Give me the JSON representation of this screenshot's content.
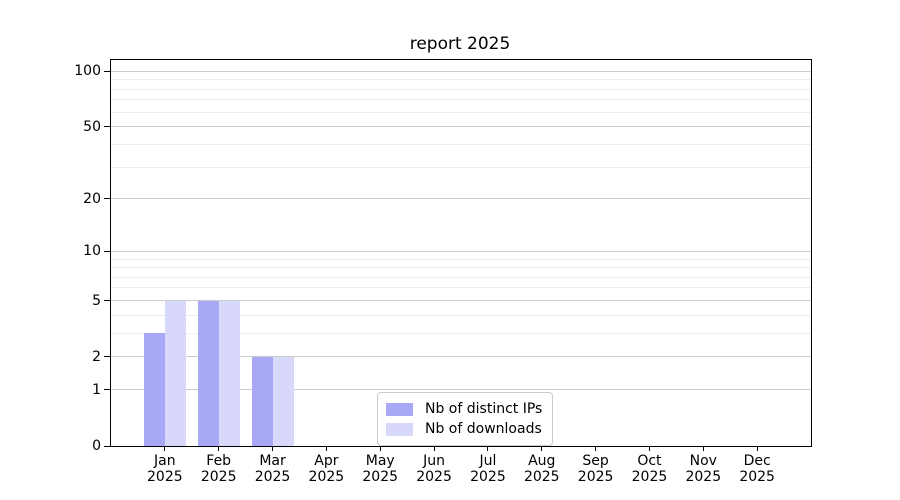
{
  "chart_data": {
    "type": "bar",
    "title": "report 2025",
    "categories": [
      {
        "month": "Jan",
        "year": "2025"
      },
      {
        "month": "Feb",
        "year": "2025"
      },
      {
        "month": "Mar",
        "year": "2025"
      },
      {
        "month": "Apr",
        "year": "2025"
      },
      {
        "month": "May",
        "year": "2025"
      },
      {
        "month": "Jun",
        "year": "2025"
      },
      {
        "month": "Jul",
        "year": "2025"
      },
      {
        "month": "Aug",
        "year": "2025"
      },
      {
        "month": "Sep",
        "year": "2025"
      },
      {
        "month": "Oct",
        "year": "2025"
      },
      {
        "month": "Nov",
        "year": "2025"
      },
      {
        "month": "Dec",
        "year": "2025"
      }
    ],
    "series": [
      {
        "name": "Nb of distinct IPs",
        "color": "#a8a8f6",
        "values": [
          3,
          5,
          2,
          0,
          0,
          0,
          0,
          0,
          0,
          0,
          0,
          0
        ]
      },
      {
        "name": "Nb of downloads",
        "color": "#d8d8fa",
        "values": [
          5,
          5,
          2,
          0,
          0,
          0,
          0,
          0,
          0,
          0,
          0,
          0
        ]
      }
    ],
    "xlabel": "",
    "ylabel": "",
    "y_axis": {
      "scale": "log(value+1)",
      "ticks": [
        0,
        1,
        2,
        5,
        10,
        20,
        50,
        100
      ],
      "minor_gridlines": [
        3,
        4,
        6,
        7,
        8,
        9,
        30,
        40,
        60,
        70,
        80,
        90
      ],
      "ylim": [
        0,
        115
      ]
    },
    "grid": true,
    "legend_position": "lower center-right inside plot",
    "colors": {
      "major_grid": "#cccccc",
      "minor_grid": "#ededed",
      "spine": "#000000"
    }
  }
}
